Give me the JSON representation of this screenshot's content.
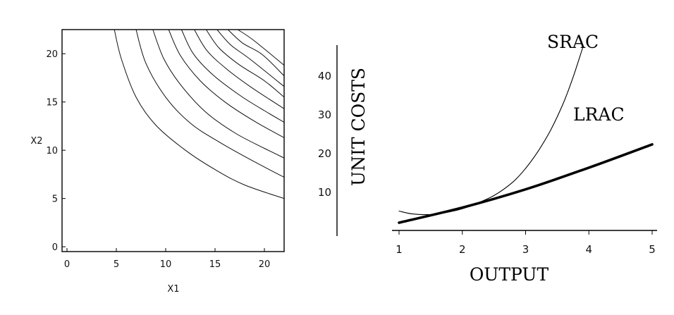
{
  "chart_data": [
    {
      "type": "contour",
      "title": "",
      "xlabel": "X1",
      "ylabel": "X2",
      "xlim": [
        -0.5,
        22
      ],
      "ylim": [
        -0.5,
        22.5
      ],
      "xticks": [
        "0",
        "5",
        "10",
        "15",
        "20"
      ],
      "yticks": [
        "0",
        "5",
        "10",
        "15",
        "20"
      ],
      "grid": false,
      "series": [
        {
          "level": 1,
          "values": [
            [
              4.8,
              22.5
            ],
            [
              5.5,
              19.5
            ],
            [
              7,
              15.5
            ],
            [
              9,
              12.6
            ],
            [
              12,
              10
            ],
            [
              15,
              8
            ],
            [
              18,
              6.4
            ],
            [
              22,
              5
            ]
          ]
        },
        {
          "level": 2,
          "values": [
            [
              7,
              22.5
            ],
            [
              8,
              19
            ],
            [
              10,
              15.5
            ],
            [
              12.5,
              12.8
            ],
            [
              15.5,
              10.8
            ],
            [
              19,
              8.8
            ],
            [
              22,
              7.2
            ]
          ]
        },
        {
          "level": 3,
          "values": [
            [
              8.7,
              22.5
            ],
            [
              9.8,
              19.5
            ],
            [
              11.5,
              16.8
            ],
            [
              14,
              14
            ],
            [
              17,
              11.8
            ],
            [
              20,
              10.2
            ],
            [
              22,
              9.2
            ]
          ]
        },
        {
          "level": 4,
          "values": [
            [
              10.3,
              22.5
            ],
            [
              11.5,
              19.8
            ],
            [
              13.5,
              17.2
            ],
            [
              16,
              15
            ],
            [
              19,
              13
            ],
            [
              22,
              11.3
            ]
          ]
        },
        {
          "level": 5,
          "values": [
            [
              11.6,
              22.5
            ],
            [
              12.8,
              20
            ],
            [
              14.8,
              17.8
            ],
            [
              17.5,
              15.7
            ],
            [
              20,
              14.1
            ],
            [
              22,
              12.9
            ]
          ]
        },
        {
          "level": 6,
          "values": [
            [
              12.9,
              22.5
            ],
            [
              14.2,
              20.3
            ],
            [
              16.2,
              18.4
            ],
            [
              18.7,
              16.5
            ],
            [
              22,
              14.3
            ]
          ]
        },
        {
          "level": 7,
          "values": [
            [
              14.1,
              22.5
            ],
            [
              15.4,
              20.6
            ],
            [
              17.4,
              18.9
            ],
            [
              20,
              17.2
            ],
            [
              22,
              15.5
            ]
          ]
        },
        {
          "level": 8,
          "values": [
            [
              15.2,
              22.5
            ],
            [
              16.6,
              20.9
            ],
            [
              18.6,
              19.4
            ],
            [
              22,
              16.6
            ]
          ]
        },
        {
          "level": 9,
          "values": [
            [
              16.3,
              22.5
            ],
            [
              17.8,
              21.1
            ],
            [
              19.8,
              19.9
            ],
            [
              22,
              17.7
            ]
          ]
        },
        {
          "level": 10,
          "values": [
            [
              17.3,
              22.5
            ],
            [
              18.9,
              21.4
            ],
            [
              22,
              18.8
            ]
          ]
        }
      ]
    },
    {
      "type": "line",
      "title": "",
      "xlabel": "OUTPUT",
      "ylabel": "UNIT COSTS",
      "xlim": [
        1,
        5
      ],
      "ylim": [
        0,
        47
      ],
      "xticks": [
        "1",
        "2",
        "3",
        "4",
        "5"
      ],
      "yticks": [
        "10",
        "20",
        "30",
        "40"
      ],
      "grid": false,
      "series": [
        {
          "name": "SRAC",
          "values": [
            [
              1,
              5.0
            ],
            [
              1.2,
              4.3
            ],
            [
              1.5,
              4.1
            ],
            [
              1.8,
              4.8
            ],
            [
              2.0,
              5.6
            ],
            [
              2.2,
              6.8
            ],
            [
              2.5,
              9.0
            ],
            [
              2.8,
              12.5
            ],
            [
              3.0,
              16.0
            ],
            [
              3.2,
              20.5
            ],
            [
              3.4,
              26.0
            ],
            [
              3.6,
              33.0
            ],
            [
              3.75,
              39.5
            ],
            [
              3.9,
              47.0
            ]
          ]
        },
        {
          "name": "LRAC",
          "values": [
            [
              1,
              2.0
            ],
            [
              2,
              5.9
            ],
            [
              3,
              10.6
            ],
            [
              4,
              16.2
            ],
            [
              5,
              22.2
            ]
          ]
        }
      ]
    }
  ]
}
